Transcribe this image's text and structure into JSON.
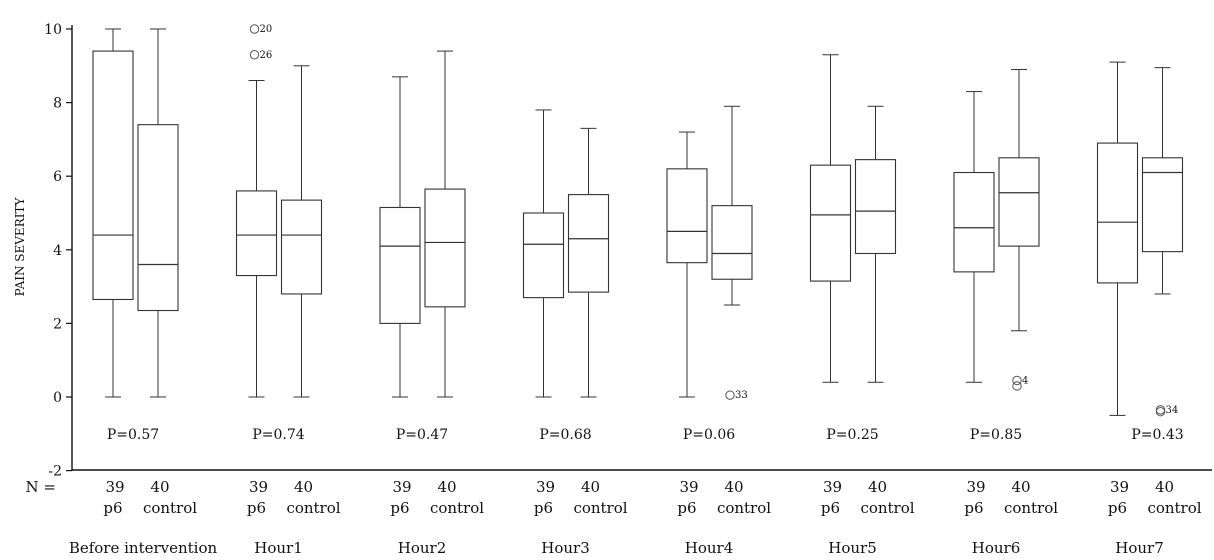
{
  "chart_data": {
    "type": "boxplot",
    "title": "",
    "ylabel": "PAIN SEVERITY",
    "xlabel": "",
    "ylim": [
      -2,
      10
    ],
    "yticks": [
      -2,
      0,
      2,
      4,
      6,
      8,
      10
    ],
    "n_prefix": "N =",
    "groups": [
      {
        "label": "Before intervention",
        "pvalue": "P=0.57",
        "boxes": [
          {
            "series": "p6",
            "n": "39",
            "min": 0,
            "q1": 2.65,
            "median": 4.4,
            "q3": 9.4,
            "max": 10,
            "outliers": []
          },
          {
            "series": "control",
            "n": "40",
            "min": 0,
            "q1": 2.35,
            "median": 3.6,
            "q3": 7.4,
            "max": 10,
            "outliers": []
          }
        ]
      },
      {
        "label": "Hour1",
        "pvalue": "P=0.74",
        "boxes": [
          {
            "series": "p6",
            "n": "39",
            "min": 0,
            "q1": 3.3,
            "median": 4.4,
            "q3": 5.6,
            "max": 8.6,
            "outliers": [
              {
                "value": 10,
                "label": "20"
              },
              {
                "value": 9.3,
                "label": "26"
              }
            ]
          },
          {
            "series": "control",
            "n": "40",
            "min": 0,
            "q1": 2.8,
            "median": 4.4,
            "q3": 5.35,
            "max": 9.0,
            "outliers": []
          }
        ]
      },
      {
        "label": "Hour2",
        "pvalue": "P=0.47",
        "boxes": [
          {
            "series": "p6",
            "n": "39",
            "min": 0,
            "q1": 2.0,
            "median": 4.1,
            "q3": 5.15,
            "max": 8.7,
            "outliers": []
          },
          {
            "series": "control",
            "n": "40",
            "min": 0,
            "q1": 2.45,
            "median": 4.2,
            "q3": 5.65,
            "max": 9.4,
            "outliers": []
          }
        ]
      },
      {
        "label": "Hour3",
        "pvalue": "P=0.68",
        "boxes": [
          {
            "series": "p6",
            "n": "39",
            "min": 0,
            "q1": 2.7,
            "median": 4.15,
            "q3": 5.0,
            "max": 7.8,
            "outliers": []
          },
          {
            "series": "control",
            "n": "40",
            "min": 0,
            "q1": 2.85,
            "median": 4.3,
            "q3": 5.5,
            "max": 7.3,
            "outliers": []
          }
        ]
      },
      {
        "label": "Hour4",
        "pvalue": "P=0.06",
        "boxes": [
          {
            "series": "p6",
            "n": "39",
            "min": 0,
            "q1": 3.65,
            "median": 4.5,
            "q3": 6.2,
            "max": 7.2,
            "outliers": []
          },
          {
            "series": "control",
            "n": "40",
            "min": 2.5,
            "q1": 3.2,
            "median": 3.9,
            "q3": 5.2,
            "max": 7.9,
            "outliers": [
              {
                "value": 0.05,
                "label": "33"
              }
            ]
          }
        ]
      },
      {
        "label": "Hour5",
        "pvalue": "P=0.25",
        "boxes": [
          {
            "series": "p6",
            "n": "39",
            "min": 0.4,
            "q1": 3.15,
            "median": 4.95,
            "q3": 6.3,
            "max": 9.3,
            "outliers": []
          },
          {
            "series": "control",
            "n": "40",
            "min": 0.4,
            "q1": 3.9,
            "median": 5.05,
            "q3": 6.45,
            "max": 7.9,
            "outliers": []
          }
        ]
      },
      {
        "label": "Hour6",
        "pvalue": "P=0.85",
        "boxes": [
          {
            "series": "p6",
            "n": "39",
            "min": 0.4,
            "q1": 3.4,
            "median": 4.6,
            "q3": 6.1,
            "max": 8.3,
            "outliers": []
          },
          {
            "series": "control",
            "n": "40",
            "min": 1.8,
            "q1": 4.1,
            "median": 5.55,
            "q3": 6.5,
            "max": 8.9,
            "outliers": [
              {
                "value": 0.45,
                "label": "4"
              },
              {
                "value": 0.3,
                "label": ""
              }
            ]
          }
        ]
      },
      {
        "label": "Hour7",
        "pvalue": "P=0.43",
        "boxes": [
          {
            "series": "p6",
            "n": "39",
            "min": -0.5,
            "q1": 3.1,
            "median": 4.75,
            "q3": 6.9,
            "max": 9.1,
            "outliers": []
          },
          {
            "series": "control",
            "n": "40",
            "min": 2.8,
            "q1": 3.95,
            "median": 6.1,
            "q3": 6.5,
            "max": 8.95,
            "outliers": [
              {
                "value": -0.35,
                "label": "34"
              },
              {
                "value": -0.4,
                "label": ""
              }
            ]
          }
        ]
      }
    ]
  }
}
